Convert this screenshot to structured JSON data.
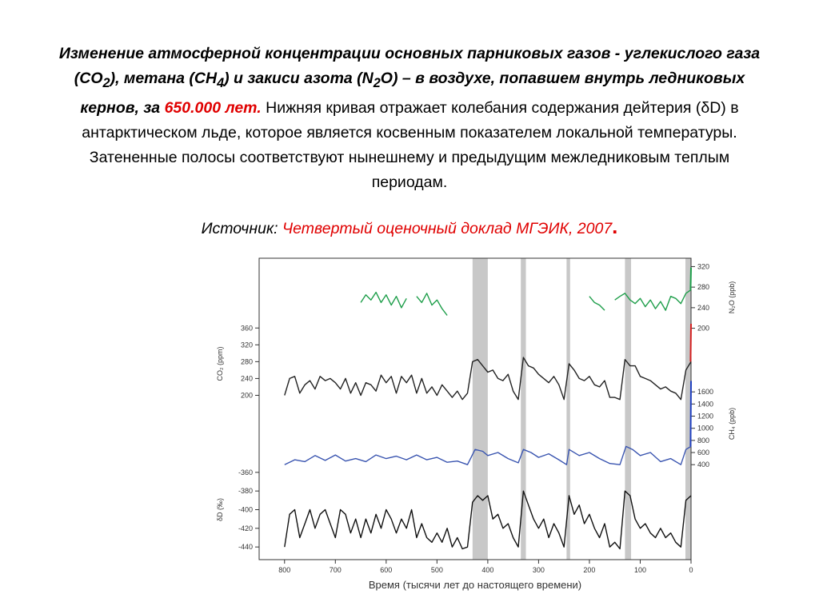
{
  "caption": {
    "line1": "Изменение атмосферной концентрации основных парниковых газов - углекислого газа",
    "line2_a": "(CO",
    "line2_sub1": "2",
    "line2_b": "), метана (CH",
    "line2_sub2": "4",
    "line2_c": ") и закиси азота (N",
    "line2_sub3": "2",
    "line2_d": "O) – в воздухе, попавшем внутрь ледниковых",
    "line3_a": "кернов, за ",
    "line3_red": "650.000 лет.",
    "line3_b": " Нижняя кривая отражает колебания содержания дейтерия (δD) в",
    "line4": "антарктическом льде, которое является косвенным показателем локальной температуры.",
    "line5": "Затененные полосы соответствуют нынешнему и предыдущим межледниковым теплым",
    "line6": "периодам."
  },
  "source": {
    "label": "Источник: ",
    "link": "Четвертый оценочный доклад МГЭИК, 2007",
    "dot": "."
  },
  "colors": {
    "n2o": "#1e9e4a",
    "co2": "#222222",
    "ch4": "#3a55b0",
    "dd": "#111111",
    "recent_co2": "#d42020",
    "recent_ch4": "#2040c0",
    "shade": "#c8c8c8"
  },
  "chart_data": {
    "type": "line",
    "xlabel": "Время (тысячи лет до настоящего времени)",
    "x_ticks": [
      "800",
      "700",
      "600",
      "500",
      "400",
      "300",
      "200",
      "100",
      "0"
    ],
    "xlim": [
      850,
      0
    ],
    "interglacial_bands_kyr": [
      [
        430,
        400
      ],
      [
        335,
        325
      ],
      [
        245,
        238
      ],
      [
        130,
        118
      ],
      [
        11,
        0
      ]
    ],
    "panels": [
      {
        "name": "N2O",
        "ylabel": "N₂O (ppb)",
        "axis_side": "right",
        "ticks": [
          "320",
          "280",
          "240",
          "200"
        ],
        "ylim": [
          190,
          330
        ],
        "segments": [
          [
            [
              650,
              250
            ],
            [
              640,
              265
            ],
            [
              630,
              255
            ],
            [
              620,
              270
            ],
            [
              610,
              250
            ],
            [
              600,
              265
            ],
            [
              590,
              245
            ],
            [
              580,
              262
            ],
            [
              570,
              240
            ],
            [
              560,
              258
            ]
          ],
          [
            [
              540,
              262
            ],
            [
              530,
              250
            ],
            [
              520,
              268
            ],
            [
              510,
              245
            ],
            [
              500,
              255
            ],
            [
              490,
              238
            ],
            [
              480,
              225
            ]
          ],
          [
            [
              200,
              262
            ],
            [
              190,
              250
            ],
            [
              180,
              245
            ],
            [
              170,
              235
            ]
          ],
          [
            [
              150,
              255
            ],
            [
              140,
              262
            ],
            [
              130,
              268
            ],
            [
              120,
              255
            ],
            [
              110,
              248
            ],
            [
              100,
              258
            ],
            [
              90,
              242
            ],
            [
              80,
              255
            ],
            [
              70,
              238
            ],
            [
              60,
              252
            ],
            [
              50,
              235
            ],
            [
              40,
              262
            ],
            [
              30,
              258
            ],
            [
              20,
              248
            ],
            [
              10,
              268
            ],
            [
              0,
              275
            ]
          ]
        ],
        "recent_ppb": [
          [
            1,
            275
          ],
          [
            0,
            318
          ]
        ]
      },
      {
        "name": "CO2",
        "ylabel": "CO₂ (ppm)",
        "axis_side": "left",
        "ticks": [
          "360",
          "320",
          "280",
          "240",
          "200"
        ],
        "ylim": [
          180,
          370
        ],
        "points": [
          [
            800,
            200
          ],
          [
            790,
            240
          ],
          [
            780,
            245
          ],
          [
            770,
            205
          ],
          [
            760,
            225
          ],
          [
            750,
            235
          ],
          [
            740,
            215
          ],
          [
            730,
            245
          ],
          [
            720,
            235
          ],
          [
            710,
            240
          ],
          [
            700,
            230
          ],
          [
            690,
            215
          ],
          [
            680,
            240
          ],
          [
            670,
            205
          ],
          [
            660,
            230
          ],
          [
            650,
            200
          ],
          [
            640,
            230
          ],
          [
            630,
            225
          ],
          [
            620,
            210
          ],
          [
            610,
            248
          ],
          [
            600,
            230
          ],
          [
            590,
            245
          ],
          [
            580,
            205
          ],
          [
            570,
            245
          ],
          [
            560,
            230
          ],
          [
            550,
            248
          ],
          [
            540,
            205
          ],
          [
            530,
            240
          ],
          [
            520,
            205
          ],
          [
            510,
            220
          ],
          [
            500,
            200
          ],
          [
            490,
            225
          ],
          [
            480,
            210
          ],
          [
            470,
            195
          ],
          [
            460,
            210
          ],
          [
            450,
            190
          ],
          [
            440,
            205
          ],
          [
            430,
            280
          ],
          [
            420,
            285
          ],
          [
            410,
            270
          ],
          [
            400,
            255
          ],
          [
            390,
            260
          ],
          [
            380,
            240
          ],
          [
            370,
            235
          ],
          [
            360,
            250
          ],
          [
            350,
            210
          ],
          [
            340,
            190
          ],
          [
            330,
            290
          ],
          [
            320,
            270
          ],
          [
            310,
            265
          ],
          [
            300,
            250
          ],
          [
            290,
            240
          ],
          [
            280,
            230
          ],
          [
            270,
            245
          ],
          [
            260,
            225
          ],
          [
            250,
            190
          ],
          [
            240,
            275
          ],
          [
            230,
            260
          ],
          [
            220,
            240
          ],
          [
            210,
            235
          ],
          [
            200,
            245
          ],
          [
            190,
            225
          ],
          [
            180,
            220
          ],
          [
            170,
            235
          ],
          [
            160,
            195
          ],
          [
            150,
            195
          ],
          [
            140,
            190
          ],
          [
            130,
            285
          ],
          [
            120,
            270
          ],
          [
            110,
            270
          ],
          [
            100,
            245
          ],
          [
            90,
            240
          ],
          [
            80,
            235
          ],
          [
            70,
            225
          ],
          [
            60,
            215
          ],
          [
            50,
            220
          ],
          [
            40,
            210
          ],
          [
            30,
            205
          ],
          [
            20,
            190
          ],
          [
            10,
            260
          ],
          [
            0,
            280
          ]
        ],
        "recent_ppm": [
          [
            1,
            280
          ],
          [
            0,
            370
          ]
        ]
      },
      {
        "name": "CH4",
        "ylabel": "CH₄ (ppb)",
        "axis_side": "right",
        "ticks": [
          "1600",
          "1400",
          "1200",
          "1000",
          "800",
          "600",
          "400"
        ],
        "ylim": [
          350,
          1800
        ],
        "points": [
          [
            800,
            400
          ],
          [
            780,
            480
          ],
          [
            760,
            450
          ],
          [
            740,
            550
          ],
          [
            720,
            470
          ],
          [
            700,
            560
          ],
          [
            680,
            460
          ],
          [
            660,
            500
          ],
          [
            640,
            450
          ],
          [
            620,
            560
          ],
          [
            600,
            500
          ],
          [
            580,
            540
          ],
          [
            560,
            480
          ],
          [
            540,
            560
          ],
          [
            520,
            480
          ],
          [
            500,
            520
          ],
          [
            480,
            440
          ],
          [
            460,
            460
          ],
          [
            440,
            400
          ],
          [
            425,
            650
          ],
          [
            410,
            620
          ],
          [
            400,
            550
          ],
          [
            380,
            600
          ],
          [
            360,
            500
          ],
          [
            340,
            430
          ],
          [
            330,
            650
          ],
          [
            315,
            600
          ],
          [
            300,
            520
          ],
          [
            280,
            580
          ],
          [
            260,
            480
          ],
          [
            245,
            400
          ],
          [
            240,
            650
          ],
          [
            220,
            550
          ],
          [
            200,
            600
          ],
          [
            180,
            500
          ],
          [
            160,
            420
          ],
          [
            140,
            400
          ],
          [
            128,
            700
          ],
          [
            115,
            650
          ],
          [
            100,
            550
          ],
          [
            80,
            600
          ],
          [
            60,
            450
          ],
          [
            40,
            500
          ],
          [
            20,
            400
          ],
          [
            10,
            650
          ],
          [
            0,
            700
          ]
        ],
        "recent_ppb": [
          [
            1,
            700
          ],
          [
            0,
            1780
          ]
        ]
      },
      {
        "name": "dD",
        "ylabel": "δD (‰)",
        "axis_side": "left",
        "ticks": [
          "-360",
          "-380",
          "-400",
          "-420",
          "-440"
        ],
        "ylim": [
          -445,
          -355
        ],
        "points": [
          [
            800,
            -440
          ],
          [
            790,
            -405
          ],
          [
            780,
            -400
          ],
          [
            770,
            -430
          ],
          [
            760,
            -415
          ],
          [
            750,
            -400
          ],
          [
            740,
            -420
          ],
          [
            730,
            -405
          ],
          [
            720,
            -400
          ],
          [
            710,
            -415
          ],
          [
            700,
            -430
          ],
          [
            690,
            -400
          ],
          [
            680,
            -405
          ],
          [
            670,
            -425
          ],
          [
            660,
            -410
          ],
          [
            650,
            -430
          ],
          [
            640,
            -410
          ],
          [
            630,
            -425
          ],
          [
            620,
            -405
          ],
          [
            610,
            -420
          ],
          [
            600,
            -400
          ],
          [
            590,
            -410
          ],
          [
            580,
            -425
          ],
          [
            570,
            -410
          ],
          [
            560,
            -420
          ],
          [
            550,
            -400
          ],
          [
            540,
            -430
          ],
          [
            530,
            -415
          ],
          [
            520,
            -430
          ],
          [
            510,
            -435
          ],
          [
            500,
            -425
          ],
          [
            490,
            -435
          ],
          [
            480,
            -420
          ],
          [
            470,
            -440
          ],
          [
            460,
            -430
          ],
          [
            450,
            -442
          ],
          [
            440,
            -440
          ],
          [
            430,
            -392
          ],
          [
            420,
            -385
          ],
          [
            410,
            -390
          ],
          [
            400,
            -385
          ],
          [
            390,
            -410
          ],
          [
            380,
            -405
          ],
          [
            370,
            -420
          ],
          [
            360,
            -415
          ],
          [
            350,
            -430
          ],
          [
            340,
            -440
          ],
          [
            330,
            -380
          ],
          [
            320,
            -395
          ],
          [
            310,
            -410
          ],
          [
            300,
            -420
          ],
          [
            290,
            -410
          ],
          [
            280,
            -430
          ],
          [
            270,
            -415
          ],
          [
            260,
            -425
          ],
          [
            250,
            -440
          ],
          [
            240,
            -385
          ],
          [
            230,
            -405
          ],
          [
            220,
            -395
          ],
          [
            210,
            -415
          ],
          [
            200,
            -405
          ],
          [
            190,
            -420
          ],
          [
            180,
            -430
          ],
          [
            170,
            -415
          ],
          [
            160,
            -440
          ],
          [
            150,
            -435
          ],
          [
            140,
            -442
          ],
          [
            130,
            -380
          ],
          [
            120,
            -385
          ],
          [
            110,
            -410
          ],
          [
            100,
            -420
          ],
          [
            90,
            -415
          ],
          [
            80,
            -425
          ],
          [
            70,
            -430
          ],
          [
            60,
            -420
          ],
          [
            50,
            -430
          ],
          [
            40,
            -425
          ],
          [
            30,
            -435
          ],
          [
            20,
            -440
          ],
          [
            10,
            -390
          ],
          [
            0,
            -385
          ]
        ]
      }
    ]
  }
}
